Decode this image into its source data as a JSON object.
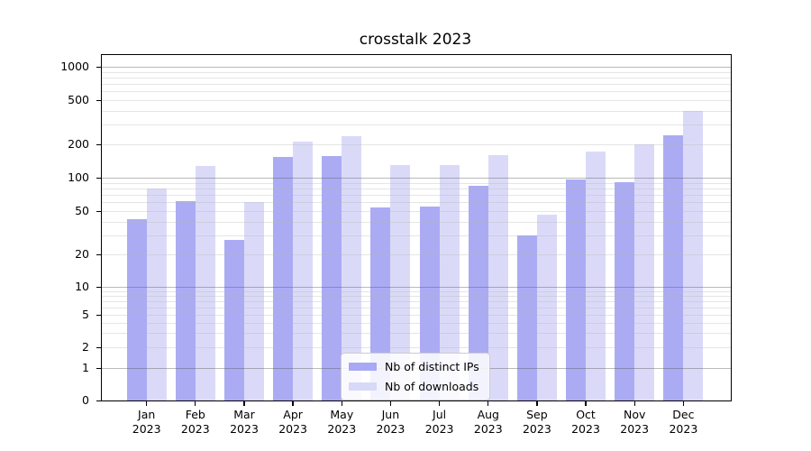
{
  "figure_title": "crosstalk 2023",
  "chart_data": {
    "type": "bar",
    "title": "crosstalk 2023",
    "categories": [
      "Jan 2023",
      "Feb 2023",
      "Mar 2023",
      "Apr 2023",
      "May 2023",
      "Jun 2023",
      "Jul 2023",
      "Aug 2023",
      "Sep 2023",
      "Oct 2023",
      "Nov 2023",
      "Dec 2023"
    ],
    "x_tick_labels": [
      {
        "month": "Jan",
        "year": "2023"
      },
      {
        "month": "Feb",
        "year": "2023"
      },
      {
        "month": "Mar",
        "year": "2023"
      },
      {
        "month": "Apr",
        "year": "2023"
      },
      {
        "month": "May",
        "year": "2023"
      },
      {
        "month": "Jun",
        "year": "2023"
      },
      {
        "month": "Jul",
        "year": "2023"
      },
      {
        "month": "Aug",
        "year": "2023"
      },
      {
        "month": "Sep",
        "year": "2023"
      },
      {
        "month": "Oct",
        "year": "2023"
      },
      {
        "month": "Nov",
        "year": "2023"
      },
      {
        "month": "Dec",
        "year": "2023"
      }
    ],
    "series": [
      {
        "name": "Nb of distinct IPs",
        "color": "#a8a8f4",
        "values": [
          42,
          62,
          27,
          153,
          156,
          54,
          55,
          84,
          30,
          97,
          92,
          240
        ]
      },
      {
        "name": "Nb of downloads",
        "color": "#d8d8f8",
        "values": [
          80,
          128,
          60,
          210,
          236,
          129,
          131,
          160,
          46,
          172,
          200,
          400
        ]
      }
    ],
    "xlabel": "",
    "ylabel": "",
    "yscale": "symlog",
    "ylim": [
      0,
      1000
    ],
    "y_tick_values": [
      1000,
      500,
      200,
      100,
      50,
      20,
      10,
      5,
      2,
      1,
      0
    ],
    "y_major_gridlines": [
      1,
      10,
      100,
      1000
    ],
    "y_minor_gridlines": [
      2,
      3,
      4,
      5,
      6,
      7,
      8,
      9,
      20,
      30,
      40,
      50,
      60,
      70,
      80,
      90,
      200,
      300,
      400,
      500,
      600,
      700,
      800,
      900
    ],
    "grid": true,
    "legend": {
      "position": "lower center",
      "labels": [
        "Nb of distinct IPs",
        "Nb of downloads"
      ]
    }
  },
  "colors": {
    "bar_distinct_ips": "#a8a8f4",
    "bar_downloads": "#d8d8f8",
    "grid_minor": "#e6e6e6",
    "grid_major": "#b3b3b3",
    "axis_spine": "#000000",
    "text": "#000000",
    "legend_border": "#cccccc",
    "legend_background": "#ffffff"
  }
}
